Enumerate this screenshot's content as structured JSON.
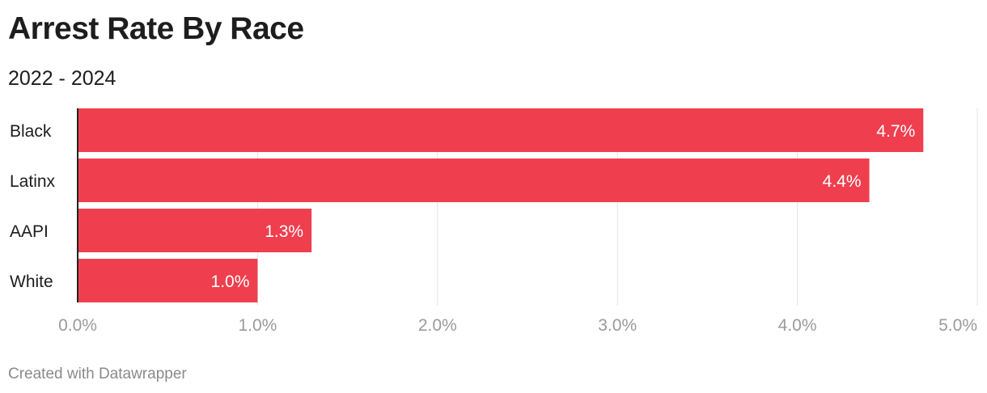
{
  "header": {
    "title": "Arrest Rate By Race",
    "subtitle": "2022 - 2024"
  },
  "footer": {
    "credit": "Created with Datawrapper"
  },
  "chart_data": {
    "type": "bar",
    "orientation": "horizontal",
    "categories": [
      "Black",
      "Latinx",
      "AAPI",
      "White"
    ],
    "values": [
      4.7,
      4.4,
      1.3,
      1.0
    ],
    "value_labels": [
      "4.7%",
      "4.4%",
      "1.3%",
      "1.0%"
    ],
    "xlim": [
      0,
      5
    ],
    "x_ticks": [
      0,
      1,
      2,
      3,
      4,
      5
    ],
    "x_tick_labels": [
      "0.0%",
      "1.0%",
      "2.0%",
      "3.0%",
      "4.0%",
      "5.0%"
    ],
    "grid": true,
    "bar_color": "#ef3f4f",
    "label_color": "#ffffff"
  }
}
